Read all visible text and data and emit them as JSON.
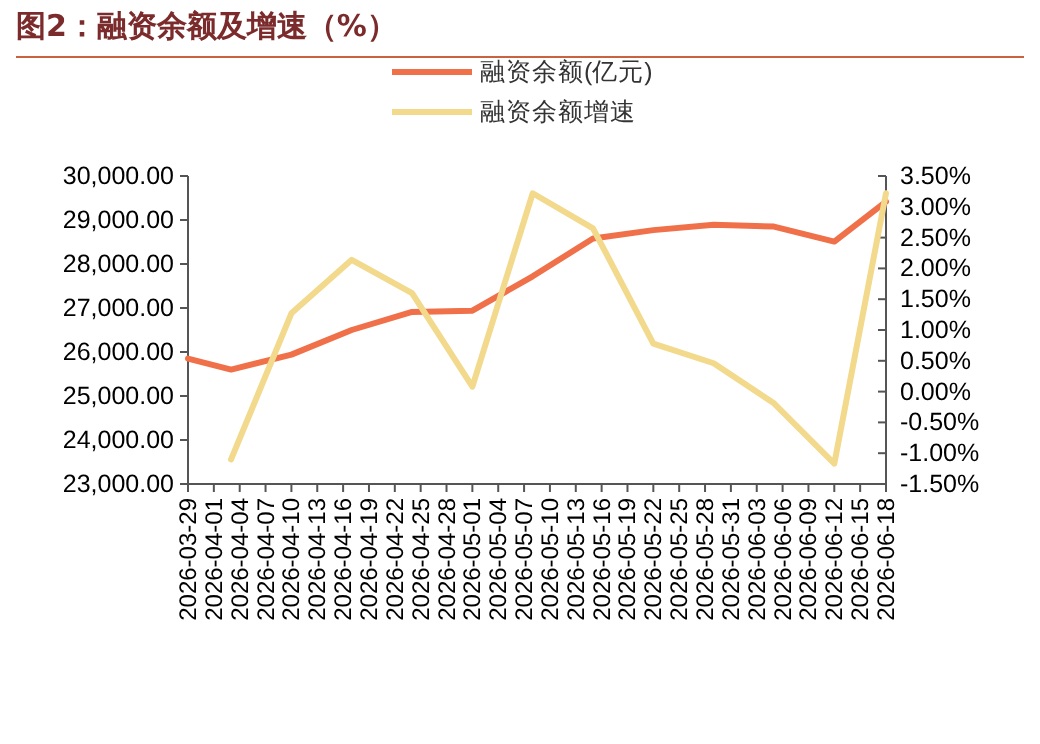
{
  "chart_data": {
    "type": "line",
    "title": "图2：融资余额及增速（%）",
    "x": [
      "2026-03-29",
      "2026-04-03",
      "2026-04-10",
      "2026-04-17",
      "2026-04-24",
      "2026-05-01",
      "2026-05-08",
      "2026-05-15",
      "2026-05-22",
      "2026-05-29",
      "2026-06-05",
      "2026-06-12",
      "2026-06-18"
    ],
    "series": [
      {
        "name": "融资余额(亿元)",
        "color": "#f0704a",
        "values": [
          25850,
          25600,
          25940,
          26500,
          26910,
          26940,
          27720,
          28580,
          28770,
          28890,
          28850,
          28510,
          29420
        ]
      },
      {
        "name": "融资余额增速",
        "color": "#f2d98c",
        "axis": "y2",
        "values": [
          null,
          -1.1,
          1.27,
          2.14,
          1.6,
          0.08,
          3.22,
          2.65,
          0.78,
          0.46,
          -0.19,
          -1.17,
          3.22
        ]
      }
    ],
    "xlim": [
      "2026-03-29",
      "2026-06-18"
    ],
    "xticks": [
      "2026-03-29",
      "2026-04-01",
      "2026-04-04",
      "2026-04-07",
      "2026-04-10",
      "2026-04-13",
      "2026-04-16",
      "2026-04-19",
      "2026-04-22",
      "2026-04-25",
      "2026-04-28",
      "2026-05-01",
      "2026-05-04",
      "2026-05-07",
      "2026-05-10",
      "2026-05-13",
      "2026-05-16",
      "2026-05-19",
      "2026-05-22",
      "2026-05-25",
      "2026-05-28",
      "2026-05-31",
      "2026-06-03",
      "2026-06-06",
      "2026-06-09",
      "2026-06-12",
      "2026-06-15",
      "2026-06-18"
    ],
    "ylim": [
      23000,
      30000
    ],
    "yticks": [
      {
        "value": 23000,
        "label": "23,000.00"
      },
      {
        "value": 24000,
        "label": "24,000.00"
      },
      {
        "value": 25000,
        "label": "25,000.00"
      },
      {
        "value": 26000,
        "label": "26,000.00"
      },
      {
        "value": 27000,
        "label": "27,000.00"
      },
      {
        "value": 28000,
        "label": "28,000.00"
      },
      {
        "value": 29000,
        "label": "29,000.00"
      },
      {
        "value": 30000,
        "label": "30,000.00"
      }
    ],
    "y2lim": [
      -1.5,
      3.5
    ],
    "y2ticks": [
      {
        "value": -1.5,
        "label": "-1.50%"
      },
      {
        "value": -1,
        "label": "-1.00%"
      },
      {
        "value": -0.5,
        "label": "-0.50%"
      },
      {
        "value": 0,
        "label": "0.00%"
      },
      {
        "value": 0.5,
        "label": "0.50%"
      },
      {
        "value": 1,
        "label": "1.00%"
      },
      {
        "value": 1.5,
        "label": "1.50%"
      },
      {
        "value": 2,
        "label": "2.00%"
      },
      {
        "value": 2.5,
        "label": "2.50%"
      },
      {
        "value": 3,
        "label": "3.00%"
      },
      {
        "value": 3.5,
        "label": "3.50%"
      }
    ],
    "legend": "top",
    "marker": "none",
    "line_style": "solid"
  }
}
